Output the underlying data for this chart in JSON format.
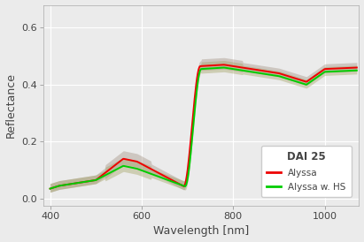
{
  "xlabel": "Wavelength [nm]",
  "ylabel": "Reflectance",
  "legend_title": "DAI 25",
  "legend_entries": [
    "Alyssa",
    "Alyssa w. HS"
  ],
  "line_colors": [
    "#EE0000",
    "#00CC00"
  ],
  "ribbon_color_alyssa": "#A09080",
  "ribbon_color_hs": "#A0A060",
  "ribbon_alpha": 0.4,
  "xlim": [
    385,
    1075
  ],
  "ylim": [
    -0.025,
    0.68
  ],
  "yticks": [
    0.0,
    0.2,
    0.4,
    0.6
  ],
  "xticks": [
    400,
    600,
    800,
    1000
  ],
  "background_color": "#EBEBEB",
  "panel_background": "#EBEBEB",
  "grid_color": "#FFFFFF",
  "font_color": "#444444",
  "figsize": [
    4.11,
    2.74
  ],
  "dpi": 100
}
